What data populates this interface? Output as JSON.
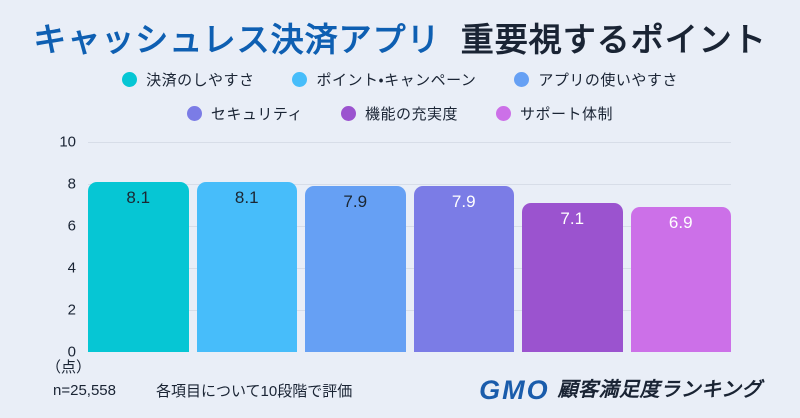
{
  "title": {
    "part1": "キャッシュレス決済アプリ",
    "part2": "重要視するポイント",
    "part1_color": "#0e5fb2",
    "part2_color": "#1a2434"
  },
  "legend": {
    "rows": [
      {
        "items": [
          {
            "label": "決済のしやすさ",
            "color": "#06c6d4"
          },
          {
            "label": "ポイント・キャンペーン",
            "color": "#47bdfa"
          },
          {
            "label": "アプリの使いやすさ",
            "color": "#66a0f4"
          }
        ]
      },
      {
        "items": [
          {
            "label": "セキュリティ",
            "color": "#7b7ce6"
          },
          {
            "label": "機能の充実度",
            "color": "#9b53cf"
          },
          {
            "label": "サポート体制",
            "color": "#cc70e8"
          }
        ]
      }
    ]
  },
  "chart_data": {
    "type": "bar",
    "title": "キャッシュレス決済アプリ 重要視するポイント",
    "categories": [
      "決済のしやすさ",
      "ポイント・キャンペーン",
      "アプリの使いやすさ",
      "セキュリティ",
      "機能の充実度",
      "サポート体制"
    ],
    "values": [
      8.1,
      8.1,
      7.9,
      7.9,
      7.1,
      6.9
    ],
    "colors": [
      "#06c6d4",
      "#47bdfa",
      "#66a0f4",
      "#7b7ce6",
      "#9b53cf",
      "#cc70e8"
    ],
    "label_colors": [
      "#1b2733",
      "#1b2733",
      "#1b2733",
      "#ffffff",
      "#ffffff",
      "#ffffff"
    ],
    "ylabel": "（点）",
    "ylim": [
      0,
      10
    ],
    "yticks": [
      "10",
      "8",
      "6",
      "4",
      "2",
      "0"
    ],
    "grid": true,
    "legend_position": "top"
  },
  "axis": {
    "unit_label": "（点）"
  },
  "footer": {
    "sample_size": "n=25,558",
    "note": "各項目について10段階で評価"
  },
  "logo": {
    "brand": "GMO",
    "service": "顧客満足度ランキング",
    "brand_color": "#1a5cab"
  }
}
